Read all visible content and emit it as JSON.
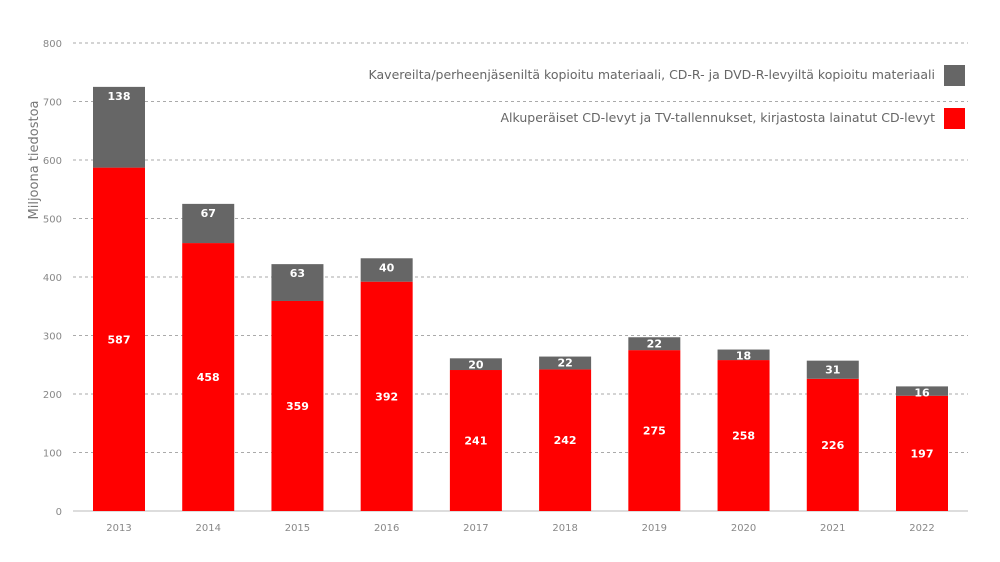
{
  "chart_data": {
    "type": "bar",
    "stacked": true,
    "title": "",
    "xlabel": "",
    "ylabel": "Miljoona tiedostoa",
    "ylim": [
      0,
      800
    ],
    "yticks": [
      0,
      100,
      200,
      300,
      400,
      500,
      600,
      700,
      800
    ],
    "grid": true,
    "legend_position": "top-right",
    "categories": [
      "2013",
      "2014",
      "2015",
      "2016",
      "2017",
      "2018",
      "2019",
      "2020",
      "2021",
      "2022"
    ],
    "series": [
      {
        "name": "Alkuperäiset CD-levyt ja TV-tallennukset, kirjastosta lainatut CD-levyt",
        "color": "#ff0000",
        "values": [
          587,
          458,
          359,
          392,
          241,
          242,
          275,
          258,
          226,
          197
        ]
      },
      {
        "name": "Kavereilta/perheenjäseniltä kopioitu materiaali, CD-R- ja DVD-R-levyiltä kopioitu materiaali",
        "color": "#666666",
        "values": [
          138,
          67,
          63,
          40,
          20,
          22,
          22,
          18,
          31,
          16
        ]
      }
    ]
  }
}
